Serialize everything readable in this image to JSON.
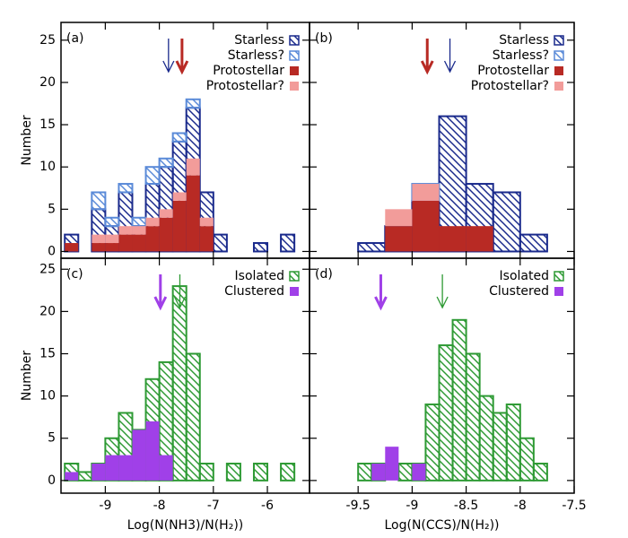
{
  "chart_data": [
    {
      "type": "histogram",
      "label": "(a)",
      "ylabel": "Number",
      "stacked": true,
      "bins": [
        -9.75,
        -9.5,
        -9.25,
        -9,
        -8.75,
        -8.5,
        -8.25,
        -8,
        -7.75,
        -7.5,
        -7.25,
        -7,
        -6.75,
        -6.5,
        -6.25,
        -6,
        -5.75,
        -5.5
      ],
      "series": [
        {
          "name": "Starless",
          "color": "#1a2a8c",
          "style": "hatch",
          "values": [
            2,
            0,
            5,
            3,
            7,
            3,
            8,
            10,
            13,
            17,
            7,
            2,
            0,
            0,
            1,
            0,
            2
          ]
        },
        {
          "name": "Starless?",
          "color": "#5a8ad8",
          "style": "hatch",
          "values": [
            0,
            0,
            2,
            1,
            1,
            1,
            2,
            1,
            1,
            1,
            0,
            0,
            0,
            0,
            0,
            0,
            0
          ]
        },
        {
          "name": "Protostellar",
          "color": "#b82a24",
          "style": "fill",
          "values": [
            1,
            0,
            1,
            1,
            2,
            2,
            3,
            4,
            6,
            9,
            3,
            0,
            0,
            0,
            0,
            0,
            0
          ]
        },
        {
          "name": "Protostellar?",
          "color": "#f29c9a",
          "style": "fill",
          "values": [
            0,
            0,
            1,
            1,
            1,
            1,
            1,
            1,
            1,
            2,
            1,
            0,
            0,
            0,
            0,
            0,
            0
          ]
        }
      ],
      "arrows": [
        {
          "x": -7.83,
          "color": "#1a2a8c",
          "style": "thin"
        },
        {
          "x": -7.58,
          "color": "#b82a24",
          "style": "thick"
        }
      ],
      "xlim": [
        -9.82,
        -5.22
      ],
      "ylim": [
        -0.8,
        27.1
      ],
      "xticks": [
        -9,
        -8,
        -7,
        -6
      ],
      "yticks": [
        0,
        5,
        10,
        15,
        20,
        25
      ],
      "xtick_labels": false,
      "ytick_labels": true
    },
    {
      "type": "histogram",
      "label": "(b)",
      "stacked": true,
      "bins": [
        -9.5,
        -9.25,
        -9,
        -8.75,
        -8.5,
        -8.25,
        -8,
        -7.75
      ],
      "series": [
        {
          "name": "Starless",
          "color": "#1a2a8c",
          "style": "hatch",
          "values": [
            1,
            3,
            6,
            16,
            8,
            7,
            2
          ]
        },
        {
          "name": "Starless?",
          "color": "#5a8ad8",
          "style": "hatch",
          "values": [
            0,
            0,
            2,
            0,
            0,
            0,
            0
          ]
        },
        {
          "name": "Protostellar",
          "color": "#b82a24",
          "style": "fill",
          "values": [
            0,
            3,
            6,
            3,
            3,
            0,
            0
          ]
        },
        {
          "name": "Protostellar?",
          "color": "#f29c9a",
          "style": "fill",
          "values": [
            0,
            2,
            2,
            0,
            0,
            0,
            0
          ]
        }
      ],
      "arrows": [
        {
          "x": -8.86,
          "color": "#b82a24",
          "style": "thick"
        },
        {
          "x": -8.65,
          "color": "#1a2a8c",
          "style": "thin"
        }
      ],
      "xlim": [
        -9.95,
        -7.5
      ],
      "ylim": [
        -0.8,
        27.1
      ],
      "xticks": [
        -9.5,
        -9,
        -8.5,
        -8,
        -7.5
      ],
      "yticks": [
        0,
        5,
        10,
        15,
        20,
        25
      ],
      "xtick_labels": false,
      "ytick_labels": false
    },
    {
      "type": "histogram",
      "label": "(c)",
      "ylabel": "Number",
      "xlabel": "Log(N(NH3)/N(H₂))",
      "stacked": false,
      "bins": [
        -9.75,
        -9.5,
        -9.25,
        -9,
        -8.75,
        -8.5,
        -8.25,
        -8,
        -7.75,
        -7.5,
        -7.25,
        -7,
        -6.75,
        -6.5,
        -6.25,
        -6,
        -5.75,
        -5.5
      ],
      "series": [
        {
          "name": "Isolated",
          "color": "#2e9a34",
          "style": "hatch",
          "values": [
            2,
            1,
            2,
            5,
            8,
            6,
            12,
            14,
            23,
            15,
            2,
            0,
            2,
            0,
            2,
            0,
            2
          ]
        },
        {
          "name": "Clustered",
          "color": "#a040e8",
          "style": "fill",
          "values": [
            1,
            0,
            2,
            3,
            3,
            6,
            7,
            3,
            0,
            0,
            0,
            0,
            0,
            0,
            0,
            0,
            0
          ]
        }
      ],
      "arrows": [
        {
          "x": -7.98,
          "color": "#a040e8",
          "style": "thick"
        },
        {
          "x": -7.62,
          "color": "#2e9a34",
          "style": "thin"
        }
      ],
      "xlim": [
        -9.82,
        -5.22
      ],
      "ylim": [
        -1.5,
        26.3
      ],
      "xticks": [
        -9,
        -8,
        -7,
        -6
      ],
      "yticks": [
        0,
        5,
        10,
        15,
        20,
        25
      ],
      "xtick_labels": true,
      "ytick_labels": true
    },
    {
      "type": "histogram",
      "label": "(d)",
      "xlabel": "Log(N(CCS)/N(H₂))",
      "stacked": false,
      "bins": [
        -9.5,
        -9.375,
        -9.25,
        -9.125,
        -9,
        -8.875,
        -8.75,
        -8.625,
        -8.5,
        -8.375,
        -8.25,
        -8.125,
        -8,
        -7.875,
        -7.75
      ],
      "series": [
        {
          "name": "Isolated",
          "color": "#2e9a34",
          "style": "hatch",
          "values": [
            2,
            2,
            0,
            2,
            2,
            9,
            16,
            19,
            15,
            10,
            8,
            9,
            5,
            2
          ]
        },
        {
          "name": "Clustered",
          "color": "#a040e8",
          "style": "fill",
          "values": [
            0,
            2,
            4,
            0,
            2,
            0,
            0,
            0,
            0,
            0,
            0,
            0,
            0,
            0
          ]
        }
      ],
      "arrows": [
        {
          "x": -9.29,
          "color": "#a040e8",
          "style": "thick"
        },
        {
          "x": -8.72,
          "color": "#2e9a34",
          "style": "thin"
        }
      ],
      "xlim": [
        -9.95,
        -7.5
      ],
      "ylim": [
        -1.5,
        26.3
      ],
      "xticks": [
        -9.5,
        -9,
        -8.5,
        -8,
        -7.5
      ],
      "yticks": [
        0,
        5,
        10,
        15,
        20,
        25
      ],
      "xtick_labels": true,
      "ytick_labels": false
    }
  ]
}
